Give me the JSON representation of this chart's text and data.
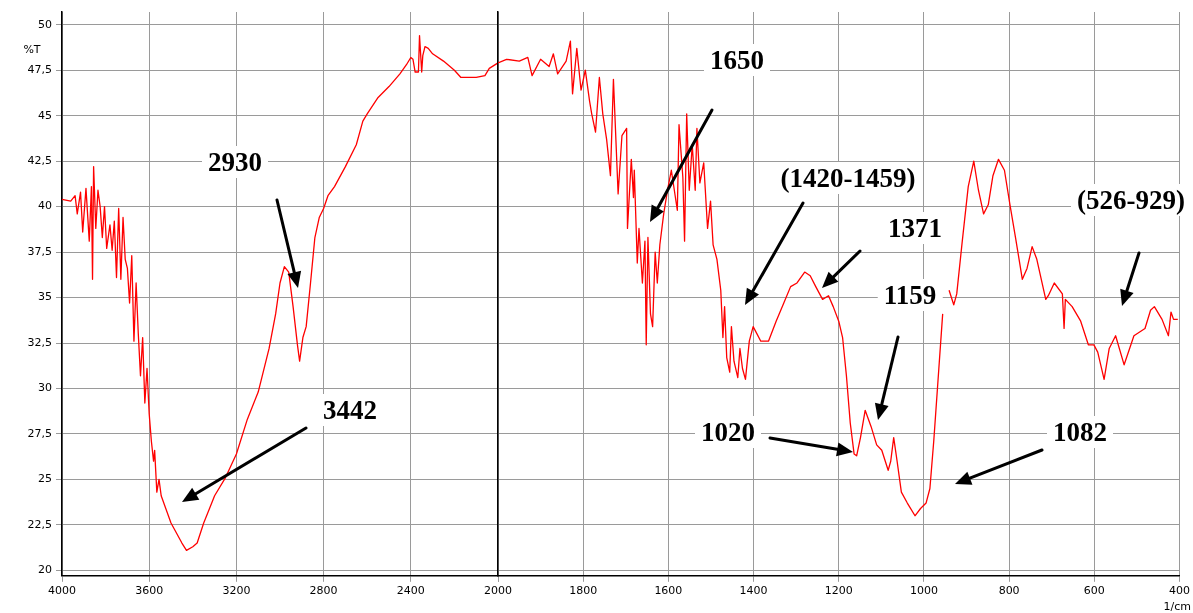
{
  "chart_data": [
    {
      "type": "line",
      "ylabel": "%T",
      "xlim": [
        4000,
        2000
      ],
      "xticks": [
        4000,
        3600,
        3200,
        2800,
        2400,
        2000
      ],
      "ylim": [
        19.7,
        50.7
      ],
      "yticks": [
        20,
        {
          "value": 22.5,
          "label": "22,5"
        },
        25,
        {
          "value": 27.5,
          "label": "27,5"
        },
        30,
        {
          "value": 32.5,
          "label": "32,5"
        },
        35,
        {
          "value": 37.5,
          "label": "37,5"
        },
        40,
        {
          "value": 42.5,
          "label": "42,5"
        },
        45,
        {
          "value": 47.5,
          "label": "47,5"
        },
        50
      ],
      "grid": true,
      "legend": false,
      "marker": "none",
      "line_style": "solid",
      "annotations": [
        "3442",
        "2930"
      ],
      "series": [
        {
          "color": "#ff0000",
          "x": [
            4000,
            3960,
            3940,
            3930,
            3915,
            3905,
            3890,
            3875,
            3865,
            3860,
            3855,
            3845,
            3835,
            3825,
            3815,
            3805,
            3795,
            3780,
            3770,
            3760,
            3750,
            3740,
            3730,
            3720,
            3710,
            3700,
            3690,
            3680,
            3670,
            3660,
            3650,
            3640,
            3630,
            3620,
            3610,
            3600,
            3590,
            3580,
            3575,
            3565,
            3555,
            3545,
            3500,
            3450,
            3429,
            3400,
            3380,
            3350,
            3300,
            3250,
            3200,
            3150,
            3100,
            3050,
            3020,
            3000,
            2980,
            2960,
            2940,
            2920,
            2910,
            2895,
            2880,
            2860,
            2840,
            2820,
            2800,
            2780,
            2750,
            2700,
            2650,
            2620,
            2600,
            2550,
            2500,
            2450,
            2420,
            2400,
            2390,
            2380,
            2365,
            2360,
            2350,
            2345,
            2335,
            2320,
            2300,
            2250,
            2200,
            2170,
            2100,
            2060,
            2040,
            2000
          ],
          "values": [
            40.4,
            40.3,
            40.6,
            39.6,
            40.8,
            38.6,
            41.0,
            38.1,
            41.1,
            36.0,
            42.2,
            38.8,
            40.9,
            40.0,
            38.3,
            40.0,
            37.7,
            39.0,
            37.6,
            39.2,
            36.1,
            39.9,
            36.0,
            39.4,
            37.1,
            36.6,
            34.7,
            37.3,
            32.6,
            35.8,
            33.0,
            30.7,
            32.8,
            29.2,
            31.1,
            28.6,
            27.1,
            26.0,
            26.6,
            24.3,
            25.0,
            24.1,
            22.6,
            21.5,
            21.1,
            21.3,
            21.5,
            22.6,
            24.1,
            25.1,
            26.4,
            28.3,
            29.8,
            32.2,
            34.1,
            35.8,
            36.7,
            36.4,
            34.5,
            32.4,
            31.5,
            32.8,
            33.4,
            35.8,
            38.3,
            39.4,
            39.9,
            40.6,
            41.1,
            42.2,
            43.4,
            44.7,
            45.1,
            46.0,
            46.6,
            47.3,
            47.8,
            48.2,
            48.1,
            47.4,
            47.4,
            49.4,
            47.4,
            48.3,
            48.8,
            48.7,
            48.4,
            48.0,
            47.5,
            47.1,
            47.1,
            47.2,
            47.6,
            47.9
          ]
        }
      ]
    },
    {
      "type": "line",
      "xlabel": "1/cm",
      "tick_labels": "x",
      "xlim": [
        2000,
        400
      ],
      "xticks": [
        {
          "value": 2000,
          "label": null
        },
        1800,
        1600,
        1400,
        1200,
        1000,
        800,
        600,
        400
      ],
      "ylim": [
        19.7,
        50.7
      ],
      "yticks": [
        20,
        22.5,
        25,
        27.5,
        30,
        32.5,
        35,
        37.5,
        40,
        42.5,
        45,
        47.5,
        50
      ],
      "grid": true,
      "legend": false,
      "marker": "none",
      "line_style": "solid",
      "annotations": [
        "1650",
        "(1420-1459)",
        "1371",
        "1159",
        "1020",
        "1082",
        "(526-929)"
      ],
      "series": [
        {
          "color": "#ff0000",
          "x": [
            2000,
            1980,
            1950,
            1930,
            1920,
            1900,
            1880,
            1870,
            1860,
            1840,
            1830,
            1825,
            1815,
            1805,
            1795,
            1785,
            1780,
            1771,
            1762,
            1754,
            1745,
            1736,
            1729,
            1718,
            1709,
            1698,
            1696,
            1687,
            1682,
            1680,
            1673,
            1669,
            1661,
            1655,
            1652,
            1648,
            1642,
            1637,
            1631,
            1626,
            1620,
            1611,
            1602,
            1593,
            1579,
            1575,
            1566,
            1562,
            1557,
            1551,
            1544,
            1537,
            1533,
            1526,
            1517,
            1508,
            1501,
            1495,
            1486,
            1477,
            1472,
            1468,
            1463,
            1456,
            1452,
            1446,
            1437,
            1432,
            1426,
            1419,
            1410,
            1401,
            1392,
            1383,
            1365,
            1347,
            1329,
            1313,
            1298,
            1280,
            1267,
            1254,
            1238,
            1224,
            1213,
            1200,
            1191,
            1182,
            1173,
            1164,
            1158,
            1149,
            1138,
            1124,
            1111,
            1099,
            1084,
            1078,
            1071,
            1063,
            1053,
            1039,
            1021,
            1008,
            995,
            986,
            977,
            965,
            956,
            948,
            941,
            930,
            923,
            910,
            896,
            883,
            872,
            860,
            849,
            838,
            825,
            811,
            798,
            785,
            769,
            758,
            746,
            735,
            714,
            708,
            694,
            675,
            671,
            668,
            652,
            632,
            614,
            601,
            592,
            577,
            565,
            550,
            530,
            507,
            481,
            468,
            459,
            441,
            426,
            420,
            414,
            404
          ],
          "values": [
            47.9,
            48.1,
            48.0,
            48.2,
            47.2,
            48.1,
            47.7,
            48.4,
            47.3,
            48.0,
            49.1,
            46.2,
            48.7,
            46.4,
            47.5,
            45.8,
            45.1,
            44.1,
            47.1,
            45.1,
            43.7,
            41.7,
            47.0,
            40.7,
            43.9,
            44.3,
            38.8,
            42.6,
            40.5,
            42.0,
            36.9,
            38.8,
            35.8,
            38.1,
            32.4,
            38.3,
            34.1,
            33.4,
            37.5,
            35.8,
            37.9,
            39.6,
            40.9,
            42.0,
            39.8,
            44.5,
            41.6,
            38.1,
            45.1,
            40.9,
            43.4,
            40.9,
            44.3,
            41.3,
            42.4,
            38.8,
            40.3,
            37.9,
            37.1,
            35.4,
            32.8,
            34.5,
            31.7,
            30.9,
            33.4,
            31.5,
            30.6,
            32.2,
            31.1,
            30.5,
            32.6,
            33.4,
            33.0,
            32.6,
            32.6,
            33.7,
            34.7,
            35.6,
            35.8,
            36.4,
            36.2,
            35.6,
            34.9,
            35.1,
            34.5,
            33.7,
            32.8,
            30.7,
            28.1,
            26.4,
            26.3,
            27.3,
            28.8,
            27.9,
            26.9,
            26.6,
            25.5,
            26.0,
            27.3,
            26.0,
            24.3,
            23.7,
            23.0,
            23.4,
            23.7,
            24.5,
            27.1,
            31.1,
            34.1,
            null,
            35.4,
            34.6,
            35.2,
            38.1,
            41.1,
            42.5,
            40.9,
            39.6,
            40.1,
            41.7,
            42.6,
            42.0,
            40.1,
            38.3,
            36.0,
            36.6,
            37.8,
            37.1,
            34.9,
            35.1,
            35.8,
            35.2,
            33.3,
            34.9,
            34.5,
            33.7,
            32.4,
            32.4,
            32.0,
            30.5,
            32.2,
            32.9,
            31.3,
            32.9,
            33.3,
            34.3,
            34.5,
            33.8,
            32.9,
            34.2,
            33.8,
            33.8
          ]
        }
      ]
    }
  ]
}
